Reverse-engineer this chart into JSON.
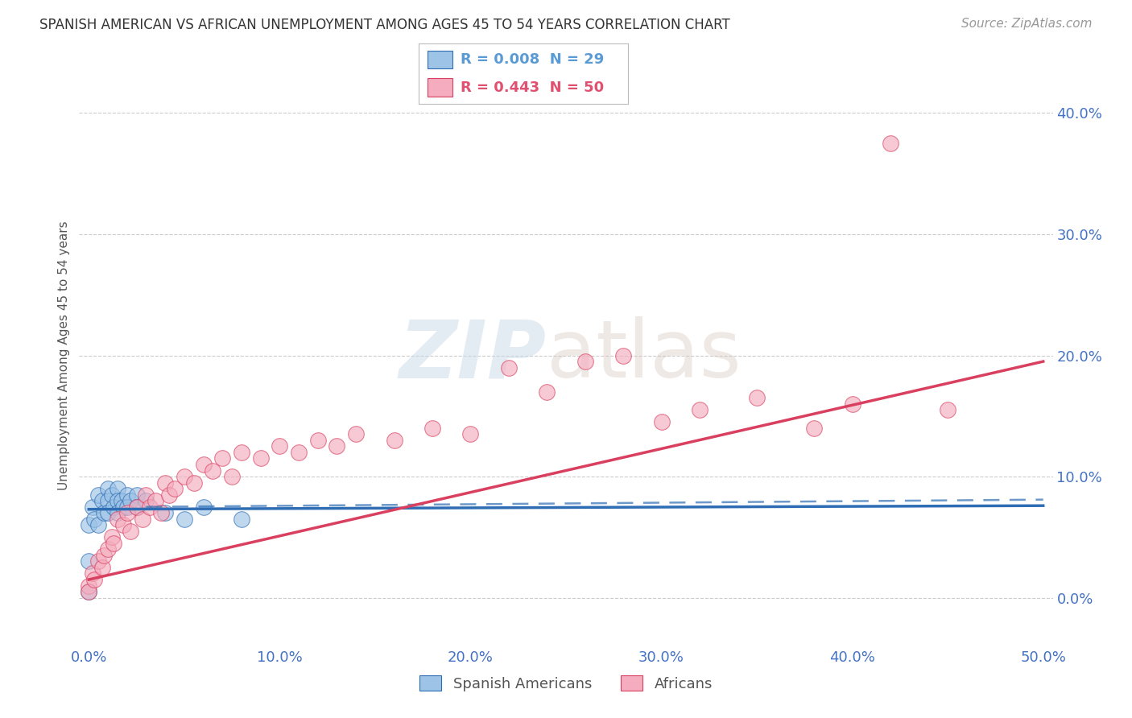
{
  "title": "SPANISH AMERICAN VS AFRICAN UNEMPLOYMENT AMONG AGES 45 TO 54 YEARS CORRELATION CHART",
  "source": "Source: ZipAtlas.com",
  "ylabel": "Unemployment Among Ages 45 to 54 years",
  "xlabel_ticks": [
    "0.0%",
    "10.0%",
    "20.0%",
    "30.0%",
    "40.0%",
    "50.0%"
  ],
  "xlabel_vals": [
    0.0,
    0.1,
    0.2,
    0.3,
    0.4,
    0.5
  ],
  "ylabel_ticks": [
    "0.0%",
    "10.0%",
    "20.0%",
    "30.0%",
    "40.0%"
  ],
  "ylabel_vals": [
    0.0,
    0.1,
    0.2,
    0.3,
    0.4
  ],
  "xlim": [
    -0.005,
    0.505
  ],
  "ylim": [
    -0.04,
    0.44
  ],
  "watermark_zip": "ZIP",
  "watermark_atlas": "atlas",
  "legend_entries": [
    {
      "label": "R = 0.008  N = 29",
      "color": "#5b9bd5"
    },
    {
      "label": "R = 0.443  N = 50",
      "color": "#e05070"
    }
  ],
  "legend_label_spanish": "Spanish Americans",
  "legend_label_african": "Africans",
  "color_spanish": "#9dc3e6",
  "color_african": "#f4acbe",
  "trendline_spanish_color": "#2e6db4",
  "trendline_african_color": "#d94060",
  "background_color": "#ffffff",
  "grid_color": "#cccccc",
  "tick_color": "#4472c4",
  "spanish_x": [
    0.0,
    0.0,
    0.0,
    0.002,
    0.003,
    0.005,
    0.005,
    0.007,
    0.008,
    0.01,
    0.01,
    0.01,
    0.012,
    0.013,
    0.015,
    0.015,
    0.015,
    0.017,
    0.018,
    0.02,
    0.02,
    0.022,
    0.025,
    0.025,
    0.03,
    0.04,
    0.05,
    0.06,
    0.08
  ],
  "spanish_y": [
    0.06,
    0.03,
    0.005,
    0.075,
    0.065,
    0.085,
    0.06,
    0.08,
    0.07,
    0.09,
    0.08,
    0.07,
    0.085,
    0.075,
    0.09,
    0.08,
    0.07,
    0.08,
    0.075,
    0.085,
    0.075,
    0.08,
    0.085,
    0.075,
    0.08,
    0.07,
    0.065,
    0.075,
    0.065
  ],
  "african_x": [
    0.0,
    0.0,
    0.002,
    0.003,
    0.005,
    0.007,
    0.008,
    0.01,
    0.012,
    0.013,
    0.015,
    0.018,
    0.02,
    0.022,
    0.025,
    0.028,
    0.03,
    0.032,
    0.035,
    0.038,
    0.04,
    0.042,
    0.045,
    0.05,
    0.055,
    0.06,
    0.065,
    0.07,
    0.075,
    0.08,
    0.09,
    0.1,
    0.11,
    0.12,
    0.13,
    0.14,
    0.16,
    0.18,
    0.2,
    0.22,
    0.24,
    0.26,
    0.28,
    0.3,
    0.32,
    0.35,
    0.38,
    0.4,
    0.42,
    0.45
  ],
  "african_y": [
    0.01,
    0.005,
    0.02,
    0.015,
    0.03,
    0.025,
    0.035,
    0.04,
    0.05,
    0.045,
    0.065,
    0.06,
    0.07,
    0.055,
    0.075,
    0.065,
    0.085,
    0.075,
    0.08,
    0.07,
    0.095,
    0.085,
    0.09,
    0.1,
    0.095,
    0.11,
    0.105,
    0.115,
    0.1,
    0.12,
    0.115,
    0.125,
    0.12,
    0.13,
    0.125,
    0.135,
    0.13,
    0.14,
    0.135,
    0.19,
    0.17,
    0.195,
    0.2,
    0.145,
    0.155,
    0.165,
    0.14,
    0.16,
    0.375,
    0.155
  ],
  "trendline_spanish_y_start": 0.073,
  "trendline_spanish_y_end": 0.076,
  "trendline_african_y_start": 0.015,
  "trendline_african_y_end": 0.195
}
